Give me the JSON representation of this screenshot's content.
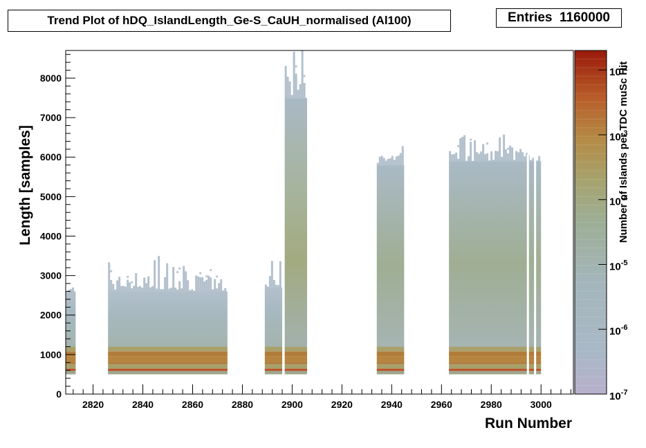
{
  "title": "Trend Plot of hDQ_IslandLength_Ge-S_CaUH_normalised (Al100)",
  "stats": {
    "label": "Entries",
    "value": "1160000"
  },
  "chart_data": {
    "type": "heatmap",
    "title": "Trend Plot of hDQ_IslandLength_Ge-S_CaUH_normalised (Al100)",
    "xlabel": "Run Number",
    "ylabel": "Length [samples]",
    "zlabel": "Number of Islands per TDC muSc Hit",
    "xlim": [
      2809,
      3013
    ],
    "ylim": [
      0,
      8700
    ],
    "zlim": [
      1e-07,
      0.02
    ],
    "z_scale": "log",
    "x_ticks": [
      2820,
      2840,
      2860,
      2880,
      2900,
      2920,
      2940,
      2960,
      2980,
      3000
    ],
    "y_ticks": [
      0,
      1000,
      2000,
      3000,
      4000,
      5000,
      6000,
      7000,
      8000
    ],
    "z_ticks": [
      {
        "base": "10",
        "exp": "-7"
      },
      {
        "base": "10",
        "exp": "-6"
      },
      {
        "base": "10",
        "exp": "-5"
      },
      {
        "base": "10",
        "exp": "-4"
      },
      {
        "base": "10",
        "exp": "-3"
      },
      {
        "base": "10",
        "exp": "-2"
      }
    ],
    "run_groups": [
      {
        "x_start": 2809,
        "x_end": 2813,
        "y_min": 500,
        "y_max": 2600,
        "y_peak": 3000,
        "band_low": 500,
        "band_high": 1200
      },
      {
        "x_start": 2826,
        "x_end": 2874,
        "y_min": 500,
        "y_max": 2600,
        "y_peak": 3500,
        "band_low": 500,
        "band_high": 1200
      },
      {
        "x_start": 2889,
        "x_end": 2896,
        "y_min": 500,
        "y_max": 2700,
        "y_peak": 3400,
        "band_low": 500,
        "band_high": 1200
      },
      {
        "x_start": 2897,
        "x_end": 2906,
        "y_min": 500,
        "y_max": 7500,
        "y_peak": 8700,
        "band_low": 500,
        "band_high": 1200
      },
      {
        "x_start": 2934,
        "x_end": 2945,
        "y_min": 500,
        "y_max": 5800,
        "y_peak": 6400,
        "band_low": 500,
        "band_high": 1200
      },
      {
        "x_start": 2963,
        "x_end": 3000,
        "y_min": 500,
        "y_max": 5900,
        "y_peak": 6600,
        "band_low": 500,
        "band_high": 1200
      }
    ],
    "grid": false,
    "legend": "none"
  }
}
